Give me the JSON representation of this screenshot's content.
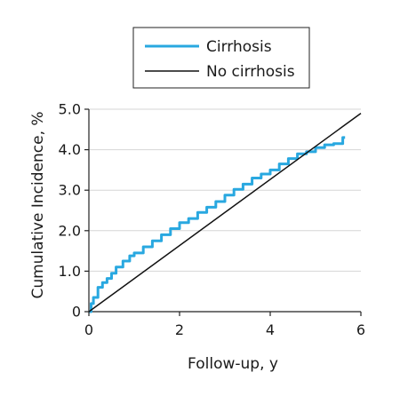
{
  "chart_data": {
    "type": "line",
    "xlabel": "Follow-up, y",
    "ylabel": "Cumulative Incidence, %",
    "xlim": [
      0,
      6
    ],
    "ylim": [
      0,
      5
    ],
    "xticks": [
      0,
      2,
      4,
      6
    ],
    "yticks": [
      0,
      1,
      2,
      3,
      4,
      5
    ],
    "x_tick_labels": [
      "0",
      "2",
      "4",
      "6"
    ],
    "y_tick_labels": [
      "0",
      "1.0",
      "2.0",
      "3.0",
      "4.0",
      "5.0"
    ],
    "grid": "horizontal",
    "legend_position": "top",
    "series": [
      {
        "name": "Cirrhosis",
        "color": "#29a8e0",
        "step": true,
        "x": [
          0.0,
          0.05,
          0.1,
          0.2,
          0.3,
          0.4,
          0.5,
          0.6,
          0.75,
          0.9,
          1.0,
          1.2,
          1.4,
          1.6,
          1.8,
          2.0,
          2.2,
          2.4,
          2.6,
          2.8,
          3.0,
          3.2,
          3.4,
          3.6,
          3.8,
          4.0,
          4.2,
          4.4,
          4.6,
          4.8,
          5.0,
          5.2,
          5.4,
          5.5,
          5.6,
          5.65
        ],
        "y": [
          0.0,
          0.2,
          0.35,
          0.6,
          0.72,
          0.82,
          0.95,
          1.1,
          1.25,
          1.38,
          1.45,
          1.6,
          1.75,
          1.9,
          2.05,
          2.2,
          2.3,
          2.45,
          2.58,
          2.72,
          2.88,
          3.02,
          3.15,
          3.3,
          3.4,
          3.5,
          3.65,
          3.78,
          3.9,
          3.95,
          4.05,
          4.12,
          4.15,
          4.15,
          4.3,
          4.3
        ]
      },
      {
        "name": "No cirrhosis",
        "color": "#111111",
        "step": false,
        "x": [
          0,
          6
        ],
        "y": [
          0,
          4.9
        ]
      }
    ]
  }
}
